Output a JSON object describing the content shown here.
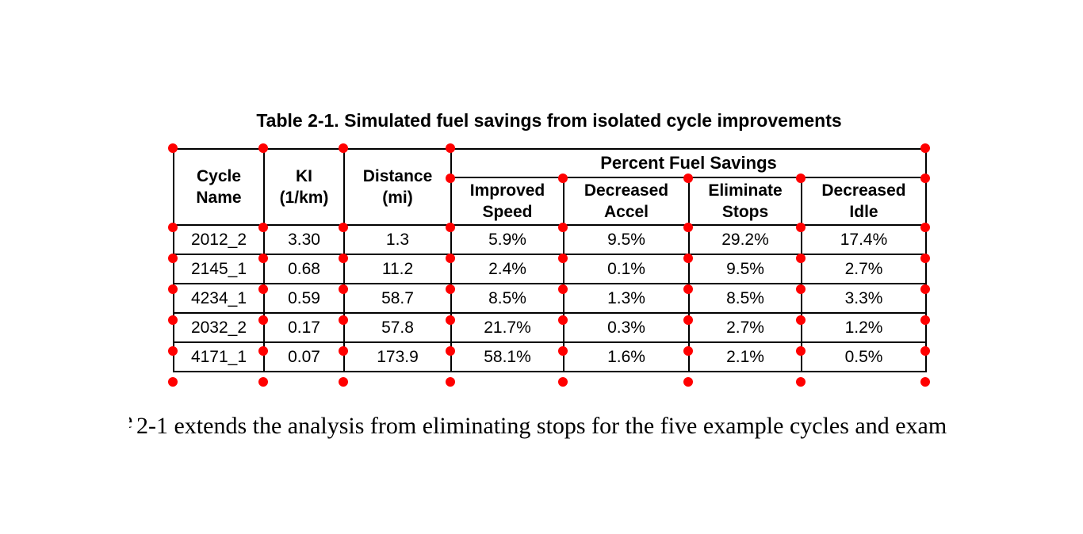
{
  "caption": "Table 2-1. Simulated fuel savings from isolated cycle improvements",
  "table": {
    "group_header": "Percent Fuel Savings",
    "columns": [
      "Cycle\nName",
      "KI\n(1/km)",
      "Distance\n(mi)",
      "Improved\nSpeed",
      "Decreased\nAccel",
      "Eliminate\nStops",
      "Decreased\nIdle"
    ],
    "rows": [
      [
        "2012_2",
        "3.30",
        "1.3",
        "5.9%",
        "9.5%",
        "29.2%",
        "17.4%"
      ],
      [
        "2145_1",
        "0.68",
        "11.2",
        "2.4%",
        "0.1%",
        "9.5%",
        "2.7%"
      ],
      [
        "4234_1",
        "0.59",
        "58.7",
        "8.5%",
        "1.3%",
        "8.5%",
        "3.3%"
      ],
      [
        "2032_2",
        "0.17",
        "57.8",
        "21.7%",
        "0.3%",
        "2.7%",
        "1.2%"
      ],
      [
        "4171_1",
        "0.07",
        "173.9",
        "58.1%",
        "1.6%",
        "2.1%",
        "0.5%"
      ]
    ]
  },
  "paragraph": {
    "clipped_letter": "e",
    "text": "2-1 extends the analysis from eliminating stops for the five example cycles and exam"
  },
  "annotation": {
    "marker_color": "#ff0000"
  }
}
